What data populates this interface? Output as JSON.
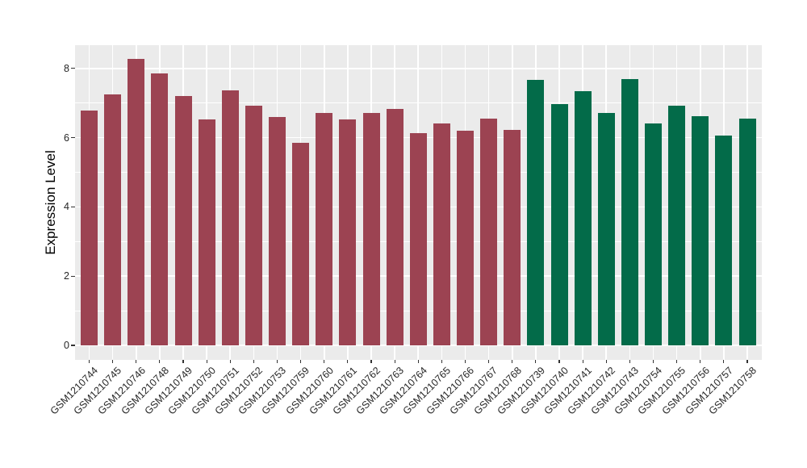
{
  "chart_data": {
    "type": "bar",
    "title": "",
    "xlabel": "",
    "ylabel": "Expression Level",
    "ylim": [
      0,
      8.7
    ],
    "yticks_major": [
      0,
      2,
      4,
      6,
      8
    ],
    "yticks_minor": [
      1,
      3,
      5,
      7
    ],
    "grid": "on",
    "legend_position": "none",
    "panel_background": "#EBEBEB",
    "gridline_color": "#FFFFFF",
    "series": [
      {
        "name": "group-maroon",
        "color": "#9C4352",
        "points": [
          [
            "GSM1210744",
            6.78
          ],
          [
            "GSM1210745",
            7.26
          ],
          [
            "GSM1210746",
            8.27
          ],
          [
            "GSM1210748",
            7.85
          ],
          [
            "GSM1210749",
            7.21
          ],
          [
            "GSM1210750",
            6.52
          ],
          [
            "GSM1210751",
            7.36
          ],
          [
            "GSM1210752",
            6.93
          ],
          [
            "GSM1210753",
            6.6
          ],
          [
            "GSM1210759",
            5.85
          ],
          [
            "GSM1210760",
            6.72
          ],
          [
            "GSM1210761",
            6.52
          ],
          [
            "GSM1210762",
            6.72
          ],
          [
            "GSM1210763",
            6.84
          ],
          [
            "GSM1210764",
            6.12
          ],
          [
            "GSM1210765",
            6.4
          ],
          [
            "GSM1210766",
            6.2
          ],
          [
            "GSM1210767",
            6.56
          ],
          [
            "GSM1210768",
            6.22
          ]
        ]
      },
      {
        "name": "group-green",
        "color": "#036B49",
        "points": [
          [
            "GSM1210739",
            7.66
          ],
          [
            "GSM1210740",
            6.98
          ],
          [
            "GSM1210741",
            7.34
          ],
          [
            "GSM1210742",
            6.72
          ],
          [
            "GSM1210743",
            7.7
          ],
          [
            "GSM1210754",
            6.4
          ],
          [
            "GSM1210755",
            6.92
          ],
          [
            "GSM1210756",
            6.62
          ],
          [
            "GSM1210757",
            6.07
          ],
          [
            "GSM1210758",
            6.56
          ]
        ]
      }
    ]
  }
}
